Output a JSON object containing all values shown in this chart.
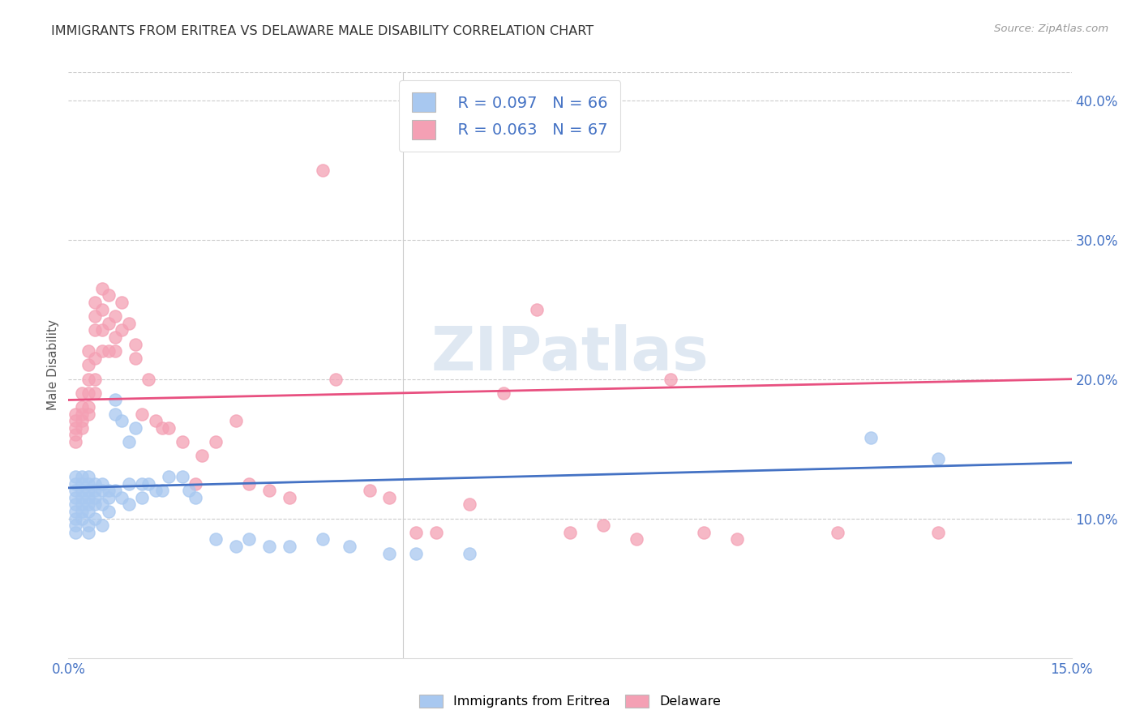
{
  "title": "IMMIGRANTS FROM ERITREA VS DELAWARE MALE DISABILITY CORRELATION CHART",
  "source": "Source: ZipAtlas.com",
  "ylabel": "Male Disability",
  "xlim": [
    0.0,
    0.15
  ],
  "ylim": [
    0.0,
    0.42
  ],
  "xticks": [
    0.0,
    0.05,
    0.15
  ],
  "xticklabels": [
    "0.0%",
    "",
    "15.0%"
  ],
  "yticks_right": [
    0.1,
    0.2,
    0.3,
    0.4
  ],
  "ytick_labels_right": [
    "10.0%",
    "20.0%",
    "30.0%",
    "40.0%"
  ],
  "legend_r1": "R = 0.097",
  "legend_n1": "N = 66",
  "legend_r2": "R = 0.063",
  "legend_n2": "N = 67",
  "color_blue": "#a8c8f0",
  "color_pink": "#f4a0b4",
  "color_line_blue": "#4472c4",
  "color_line_pink": "#e85080",
  "color_axis_blue": "#4472c4",
  "watermark": "ZIPatlas",
  "blue_scatter_x": [
    0.001,
    0.001,
    0.001,
    0.001,
    0.001,
    0.001,
    0.001,
    0.001,
    0.001,
    0.002,
    0.002,
    0.002,
    0.002,
    0.002,
    0.002,
    0.002,
    0.003,
    0.003,
    0.003,
    0.003,
    0.003,
    0.003,
    0.003,
    0.003,
    0.004,
    0.004,
    0.004,
    0.004,
    0.004,
    0.005,
    0.005,
    0.005,
    0.005,
    0.006,
    0.006,
    0.006,
    0.007,
    0.007,
    0.007,
    0.008,
    0.008,
    0.009,
    0.009,
    0.009,
    0.01,
    0.011,
    0.011,
    0.012,
    0.013,
    0.014,
    0.015,
    0.017,
    0.018,
    0.019,
    0.022,
    0.025,
    0.027,
    0.03,
    0.033,
    0.038,
    0.042,
    0.048,
    0.052,
    0.06,
    0.12,
    0.13
  ],
  "blue_scatter_y": [
    0.13,
    0.125,
    0.12,
    0.115,
    0.11,
    0.105,
    0.1,
    0.095,
    0.09,
    0.13,
    0.125,
    0.12,
    0.115,
    0.11,
    0.105,
    0.1,
    0.13,
    0.125,
    0.12,
    0.115,
    0.11,
    0.105,
    0.095,
    0.09,
    0.125,
    0.12,
    0.115,
    0.11,
    0.1,
    0.125,
    0.12,
    0.11,
    0.095,
    0.12,
    0.115,
    0.105,
    0.185,
    0.175,
    0.12,
    0.17,
    0.115,
    0.155,
    0.125,
    0.11,
    0.165,
    0.125,
    0.115,
    0.125,
    0.12,
    0.12,
    0.13,
    0.13,
    0.12,
    0.115,
    0.085,
    0.08,
    0.085,
    0.08,
    0.08,
    0.085,
    0.08,
    0.075,
    0.075,
    0.075,
    0.158,
    0.143
  ],
  "pink_scatter_x": [
    0.001,
    0.001,
    0.001,
    0.001,
    0.001,
    0.002,
    0.002,
    0.002,
    0.002,
    0.002,
    0.003,
    0.003,
    0.003,
    0.003,
    0.003,
    0.003,
    0.004,
    0.004,
    0.004,
    0.004,
    0.004,
    0.004,
    0.005,
    0.005,
    0.005,
    0.005,
    0.006,
    0.006,
    0.006,
    0.007,
    0.007,
    0.007,
    0.008,
    0.008,
    0.009,
    0.01,
    0.01,
    0.011,
    0.012,
    0.013,
    0.014,
    0.015,
    0.017,
    0.019,
    0.02,
    0.022,
    0.025,
    0.027,
    0.03,
    0.033,
    0.038,
    0.04,
    0.045,
    0.048,
    0.052,
    0.055,
    0.06,
    0.065,
    0.07,
    0.075,
    0.08,
    0.085,
    0.09,
    0.095,
    0.1,
    0.115,
    0.13
  ],
  "pink_scatter_y": [
    0.175,
    0.17,
    0.165,
    0.16,
    0.155,
    0.19,
    0.18,
    0.175,
    0.17,
    0.165,
    0.22,
    0.21,
    0.2,
    0.19,
    0.18,
    0.175,
    0.255,
    0.245,
    0.235,
    0.215,
    0.2,
    0.19,
    0.265,
    0.25,
    0.235,
    0.22,
    0.26,
    0.24,
    0.22,
    0.245,
    0.23,
    0.22,
    0.255,
    0.235,
    0.24,
    0.225,
    0.215,
    0.175,
    0.2,
    0.17,
    0.165,
    0.165,
    0.155,
    0.125,
    0.145,
    0.155,
    0.17,
    0.125,
    0.12,
    0.115,
    0.35,
    0.2,
    0.12,
    0.115,
    0.09,
    0.09,
    0.11,
    0.19,
    0.25,
    0.09,
    0.095,
    0.085,
    0.2,
    0.09,
    0.085,
    0.09,
    0.09
  ]
}
